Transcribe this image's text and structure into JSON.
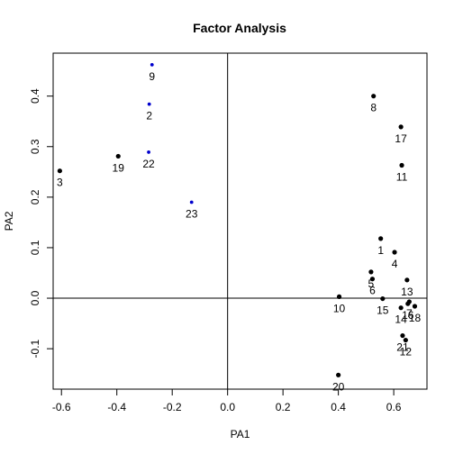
{
  "chart_data": {
    "type": "scatter",
    "title": "Factor Analysis",
    "xlabel": "PA1",
    "ylabel": "PA2",
    "xlim": [
      -0.63,
      0.72
    ],
    "ylim": [
      -0.18,
      0.485
    ],
    "xticks": [
      -0.6,
      -0.4,
      -0.2,
      0.0,
      0.2,
      0.4,
      0.6
    ],
    "xtick_labels": [
      "-0.6",
      "-0.4",
      "-0.2",
      "0.0",
      "0.2",
      "0.4",
      "0.6"
    ],
    "yticks": [
      -0.1,
      0.0,
      0.1,
      0.2,
      0.3,
      0.4
    ],
    "ytick_labels": [
      "-0.1",
      "0.0",
      "0.1",
      "0.2",
      "0.3",
      "0.4"
    ],
    "reference_lines": {
      "x": 0,
      "y": 0
    },
    "colors": {
      "default": "#000000",
      "highlight": "#0000cd"
    },
    "points": [
      {
        "label": "1",
        "x": 0.553,
        "y": 0.118,
        "color": "#000000"
      },
      {
        "label": "2",
        "x": -0.283,
        "y": 0.384,
        "color": "#0000cd"
      },
      {
        "label": "3",
        "x": -0.606,
        "y": 0.252,
        "color": "#000000"
      },
      {
        "label": "4",
        "x": 0.603,
        "y": 0.091,
        "color": "#000000"
      },
      {
        "label": "5",
        "x": 0.518,
        "y": 0.052,
        "color": "#000000"
      },
      {
        "label": "6",
        "x": 0.523,
        "y": 0.038,
        "color": "#000000"
      },
      {
        "label": "7",
        "x": 0.656,
        "y": -0.007,
        "color": "#000000"
      },
      {
        "label": "8",
        "x": 0.527,
        "y": 0.4,
        "color": "#000000"
      },
      {
        "label": "9",
        "x": -0.273,
        "y": 0.462,
        "color": "#0000cd"
      },
      {
        "label": "10",
        "x": 0.403,
        "y": 0.003,
        "color": "#000000"
      },
      {
        "label": "11",
        "x": 0.629,
        "y": 0.263,
        "color": "#000000"
      },
      {
        "label": "12",
        "x": 0.643,
        "y": -0.083,
        "color": "#000000"
      },
      {
        "label": "13",
        "x": 0.648,
        "y": 0.036,
        "color": "#000000"
      },
      {
        "label": "14",
        "x": 0.626,
        "y": -0.019,
        "color": "#000000"
      },
      {
        "label": "15",
        "x": 0.56,
        "y": -0.001,
        "color": "#000000"
      },
      {
        "label": "16",
        "x": 0.651,
        "y": -0.011,
        "color": "#000000"
      },
      {
        "label": "17",
        "x": 0.626,
        "y": 0.339,
        "color": "#000000"
      },
      {
        "label": "18",
        "x": 0.676,
        "y": -0.016,
        "color": "#000000"
      },
      {
        "label": "19",
        "x": -0.395,
        "y": 0.281,
        "color": "#000000"
      },
      {
        "label": "20",
        "x": 0.4,
        "y": -0.152,
        "color": "#000000"
      },
      {
        "label": "21",
        "x": 0.632,
        "y": -0.074,
        "color": "#000000"
      },
      {
        "label": "22",
        "x": -0.285,
        "y": 0.289,
        "color": "#0000cd"
      },
      {
        "label": "23",
        "x": -0.13,
        "y": 0.19,
        "color": "#0000cd"
      }
    ]
  }
}
